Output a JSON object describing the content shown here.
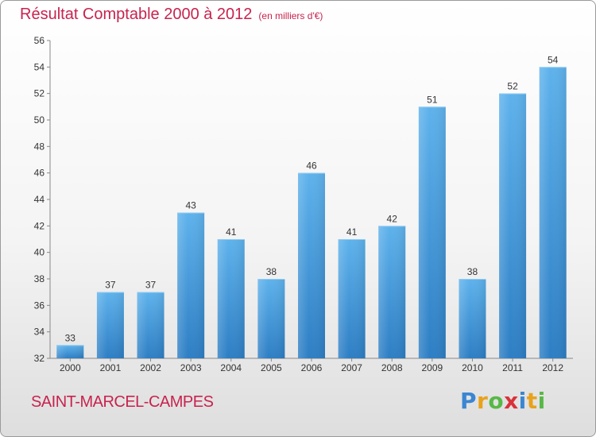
{
  "title": "Résultat Comptable 2000 à 2012",
  "subtitle": "(en milliers d'€)",
  "commune": "SAINT-MARCEL-CAMPES",
  "brand": "Proxiti",
  "chart_data": {
    "type": "bar",
    "categories": [
      "2000",
      "2001",
      "2002",
      "2003",
      "2004",
      "2005",
      "2006",
      "2007",
      "2008",
      "2009",
      "2010",
      "2011",
      "2012"
    ],
    "values": [
      33,
      37,
      37,
      43,
      41,
      38,
      46,
      41,
      42,
      51,
      38,
      52,
      54
    ],
    "ylim": [
      32,
      56
    ],
    "yticks": [
      32,
      34,
      36,
      38,
      40,
      42,
      44,
      46,
      48,
      50,
      52,
      54,
      56
    ],
    "grid": false,
    "bar_color": "#3d8fd4"
  }
}
